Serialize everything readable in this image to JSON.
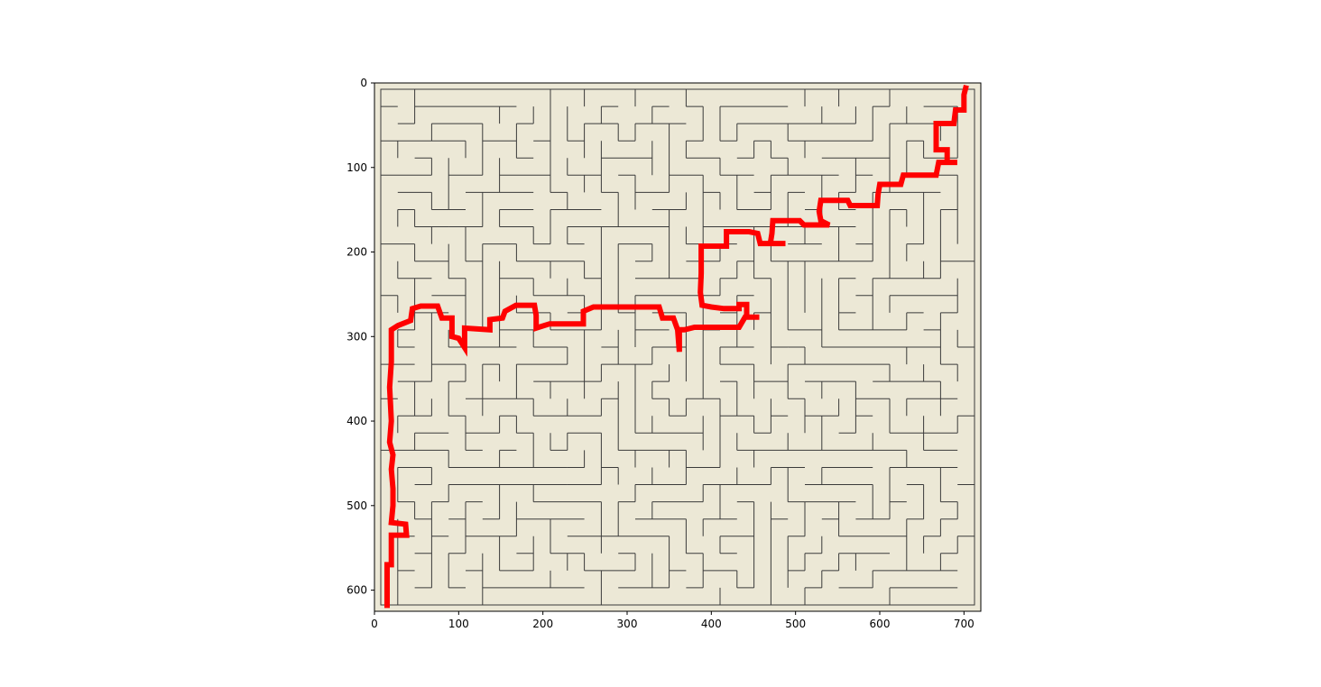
{
  "chart_data": {
    "type": "maze",
    "title": "",
    "xlabel": "",
    "ylabel": "",
    "xlim": [
      0,
      720
    ],
    "ylim": [
      625,
      0
    ],
    "x_ticks": [
      "0",
      "100",
      "200",
      "300",
      "400",
      "500",
      "600",
      "700"
    ],
    "y_ticks": [
      "0",
      "100",
      "200",
      "300",
      "400",
      "500",
      "600"
    ],
    "x_tick_values": [
      0,
      100,
      200,
      300,
      400,
      500,
      600,
      700
    ],
    "y_tick_values": [
      0,
      100,
      200,
      300,
      400,
      500,
      600
    ],
    "grid": false,
    "colors": {
      "background": "#ece8d6",
      "walls": "#3a3a3a",
      "path": "#ff0000"
    },
    "path": [
      [
        702,
        6
      ],
      [
        700,
        14
      ],
      [
        700,
        32
      ],
      [
        690,
        32
      ],
      [
        688,
        48
      ],
      [
        667,
        48
      ],
      [
        667,
        79
      ],
      [
        680,
        79
      ],
      [
        680,
        94
      ],
      [
        692,
        94
      ],
      [
        670,
        94
      ],
      [
        667,
        109
      ],
      [
        628,
        109
      ],
      [
        625,
        120
      ],
      [
        608,
        120
      ],
      [
        600,
        120
      ],
      [
        598,
        132
      ],
      [
        597,
        145
      ],
      [
        565,
        145
      ],
      [
        562,
        139
      ],
      [
        530,
        139
      ],
      [
        528,
        152
      ],
      [
        530,
        163
      ],
      [
        540,
        168
      ],
      [
        510,
        168
      ],
      [
        505,
        163
      ],
      [
        473,
        163
      ],
      [
        472,
        178
      ],
      [
        470,
        190
      ],
      [
        488,
        190
      ],
      [
        458,
        190
      ],
      [
        455,
        178
      ],
      [
        445,
        176
      ],
      [
        418,
        176
      ],
      [
        418,
        193
      ],
      [
        388,
        193
      ],
      [
        388,
        225
      ],
      [
        387,
        248
      ],
      [
        389,
        263
      ],
      [
        400,
        265
      ],
      [
        415,
        267
      ],
      [
        433,
        267
      ],
      [
        433,
        262
      ],
      [
        442,
        262
      ],
      [
        442,
        277
      ],
      [
        457,
        277
      ],
      [
        440,
        277
      ],
      [
        433,
        289
      ],
      [
        413,
        289
      ],
      [
        380,
        289
      ],
      [
        368,
        292
      ],
      [
        362,
        292
      ],
      [
        362,
        318
      ],
      [
        360,
        292
      ],
      [
        355,
        278
      ],
      [
        342,
        278
      ],
      [
        338,
        265
      ],
      [
        305,
        265
      ],
      [
        295,
        265
      ],
      [
        260,
        265
      ],
      [
        248,
        270
      ],
      [
        248,
        285
      ],
      [
        208,
        285
      ],
      [
        192,
        290
      ],
      [
        192,
        275
      ],
      [
        190,
        263
      ],
      [
        168,
        263
      ],
      [
        155,
        270
      ],
      [
        152,
        278
      ],
      [
        137,
        280
      ],
      [
        137,
        292
      ],
      [
        107,
        290
      ],
      [
        107,
        313
      ],
      [
        100,
        302
      ],
      [
        92,
        300
      ],
      [
        92,
        278
      ],
      [
        80,
        278
      ],
      [
        75,
        264
      ],
      [
        55,
        264
      ],
      [
        45,
        267
      ],
      [
        43,
        281
      ],
      [
        28,
        287
      ],
      [
        20,
        292
      ],
      [
        20,
        330
      ],
      [
        18,
        360
      ],
      [
        20,
        400
      ],
      [
        18,
        425
      ],
      [
        22,
        440
      ],
      [
        20,
        457
      ],
      [
        22,
        480
      ],
      [
        22,
        500
      ],
      [
        20,
        520
      ],
      [
        37,
        522
      ],
      [
        38,
        535
      ],
      [
        20,
        535
      ],
      [
        20,
        570
      ],
      [
        15,
        570
      ],
      [
        15,
        618
      ]
    ]
  }
}
